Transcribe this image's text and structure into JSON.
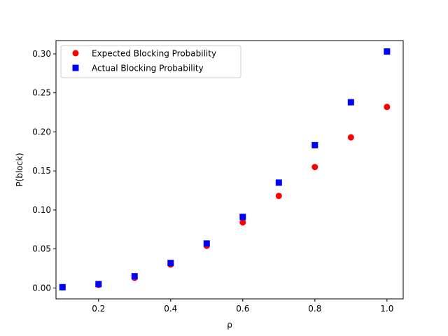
{
  "chart_data": {
    "type": "scatter",
    "xlabel": "ρ",
    "ylabel": "P(block)",
    "xlim": [
      0.082,
      1.045
    ],
    "ylim": [
      -0.014,
      0.317
    ],
    "x_ticks": [
      0.2,
      0.4,
      0.6,
      0.8,
      1.0
    ],
    "x_tick_labels": [
      "0.2",
      "0.4",
      "0.6",
      "0.8",
      "1.0"
    ],
    "y_ticks": [
      0.0,
      0.05,
      0.1,
      0.15,
      0.2,
      0.25,
      0.3
    ],
    "y_tick_labels": [
      "0.00",
      "0.05",
      "0.10",
      "0.15",
      "0.20",
      "0.25",
      "0.30"
    ],
    "grid": false,
    "legend_position": "top-left",
    "series": [
      {
        "name": "Expected Blocking Probability",
        "marker": "circle",
        "color": "#ff0000",
        "x": [
          0.1,
          0.2,
          0.3,
          0.4,
          0.5,
          0.6,
          0.7,
          0.8,
          0.9,
          1.0
        ],
        "y": [
          0.001,
          0.004,
          0.013,
          0.03,
          0.054,
          0.084,
          0.118,
          0.155,
          0.193,
          0.232
        ]
      },
      {
        "name": "Actual Blocking Probability",
        "marker": "square",
        "color": "#0000ff",
        "x": [
          0.1,
          0.2,
          0.3,
          0.4,
          0.5,
          0.6,
          0.7,
          0.8,
          0.9,
          1.0
        ],
        "y": [
          0.001,
          0.005,
          0.015,
          0.032,
          0.057,
          0.091,
          0.135,
          0.183,
          0.238,
          0.303
        ]
      }
    ]
  }
}
